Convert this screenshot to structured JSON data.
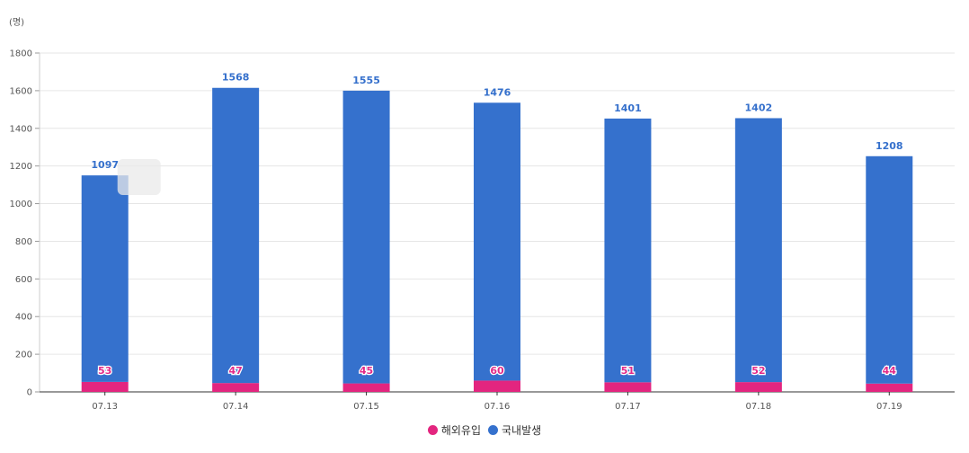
{
  "chart_data": {
    "type": "bar",
    "stacked": true,
    "unit_label": "(명)",
    "categories": [
      "07.13",
      "07.14",
      "07.15",
      "07.16",
      "07.17",
      "07.18",
      "07.19"
    ],
    "series": [
      {
        "name": "해외유입",
        "color": "#e3257f",
        "values": [
          53,
          47,
          45,
          60,
          51,
          52,
          44
        ]
      },
      {
        "name": "국내발생",
        "color": "#3571cd",
        "values": [
          1097,
          1568,
          1555,
          1476,
          1401,
          1402,
          1208
        ]
      }
    ],
    "ylim": [
      0,
      1800
    ],
    "yticks": [
      0,
      200,
      400,
      600,
      800,
      1000,
      1200,
      1400,
      1600,
      1800
    ],
    "grid": true,
    "legend_position": "bottom-center"
  }
}
